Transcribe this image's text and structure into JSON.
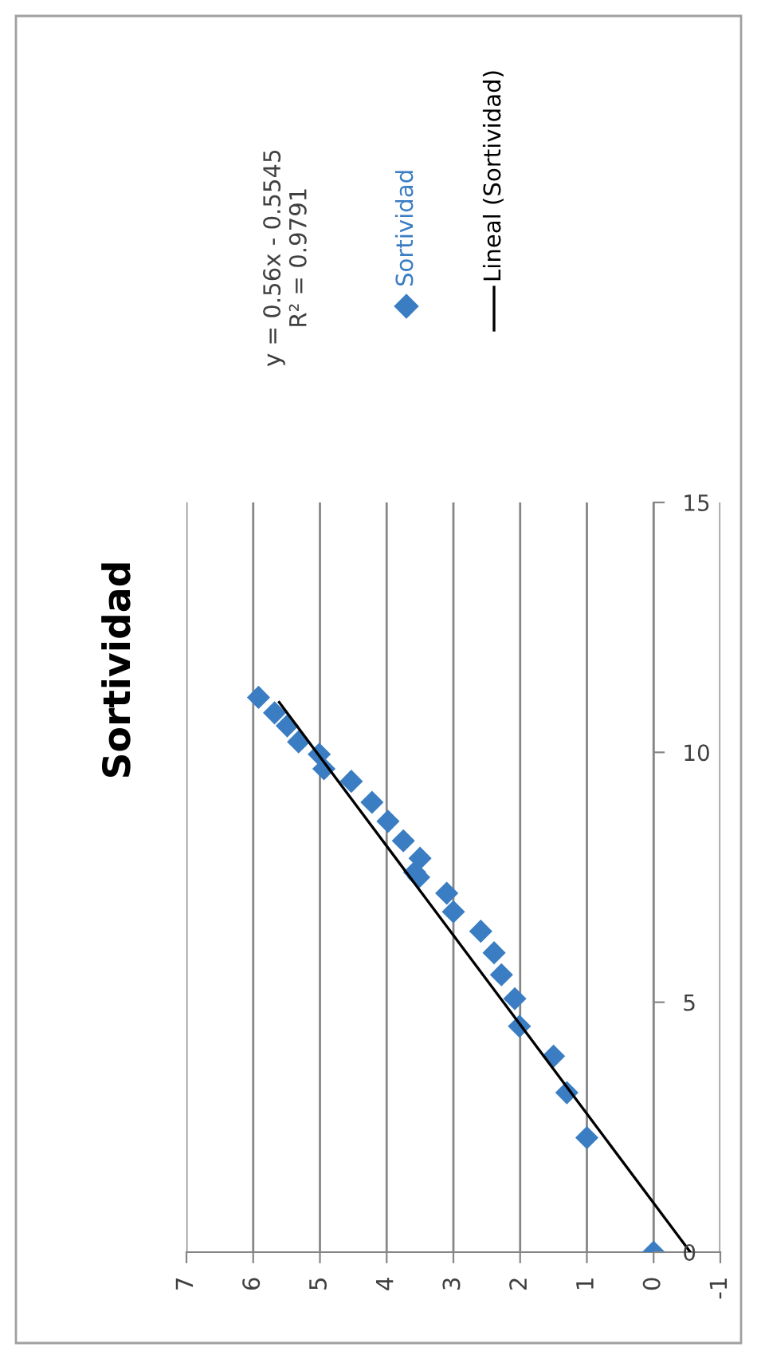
{
  "chart_data": {
    "type": "scatter",
    "title": "Sortividad",
    "annotations": [
      "y = 0.56x - 0.5545",
      "R² = 0.9791"
    ],
    "series": [
      {
        "name": "Sortividad",
        "type": "scatter",
        "color": "#3a7dc3",
        "marker": "diamond",
        "x": [
          0,
          1.0,
          1.3,
          1.5,
          2.01,
          2.08,
          2.28,
          2.39,
          2.59,
          3.0,
          3.1,
          3.52,
          3.58,
          3.5,
          3.75,
          3.98,
          4.22,
          4.53,
          4.94,
          5.01,
          5.32,
          5.49,
          5.68,
          5.92
        ],
        "values": [
          0,
          2.29,
          3.19,
          3.92,
          4.52,
          5.07,
          5.55,
          5.99,
          6.42,
          6.81,
          7.18,
          7.5,
          7.6,
          7.88,
          8.23,
          8.62,
          9.0,
          9.42,
          9.67,
          9.96,
          10.21,
          10.53,
          10.79,
          11.1
        ]
      },
      {
        "name": "Lineal (Sortividad)",
        "type": "line",
        "color": "#000000",
        "line_style": "solid",
        "x": [
          -0.55,
          5.61
        ],
        "values": [
          0,
          11
        ]
      }
    ],
    "xlim": [
      7,
      -1
    ],
    "xticks": [
      7,
      6,
      5,
      4,
      3,
      2,
      1,
      0,
      -1
    ],
    "ylim": [
      0,
      15
    ],
    "yticks": [
      0,
      5,
      10,
      15
    ],
    "grid": "x",
    "legend": "right"
  }
}
